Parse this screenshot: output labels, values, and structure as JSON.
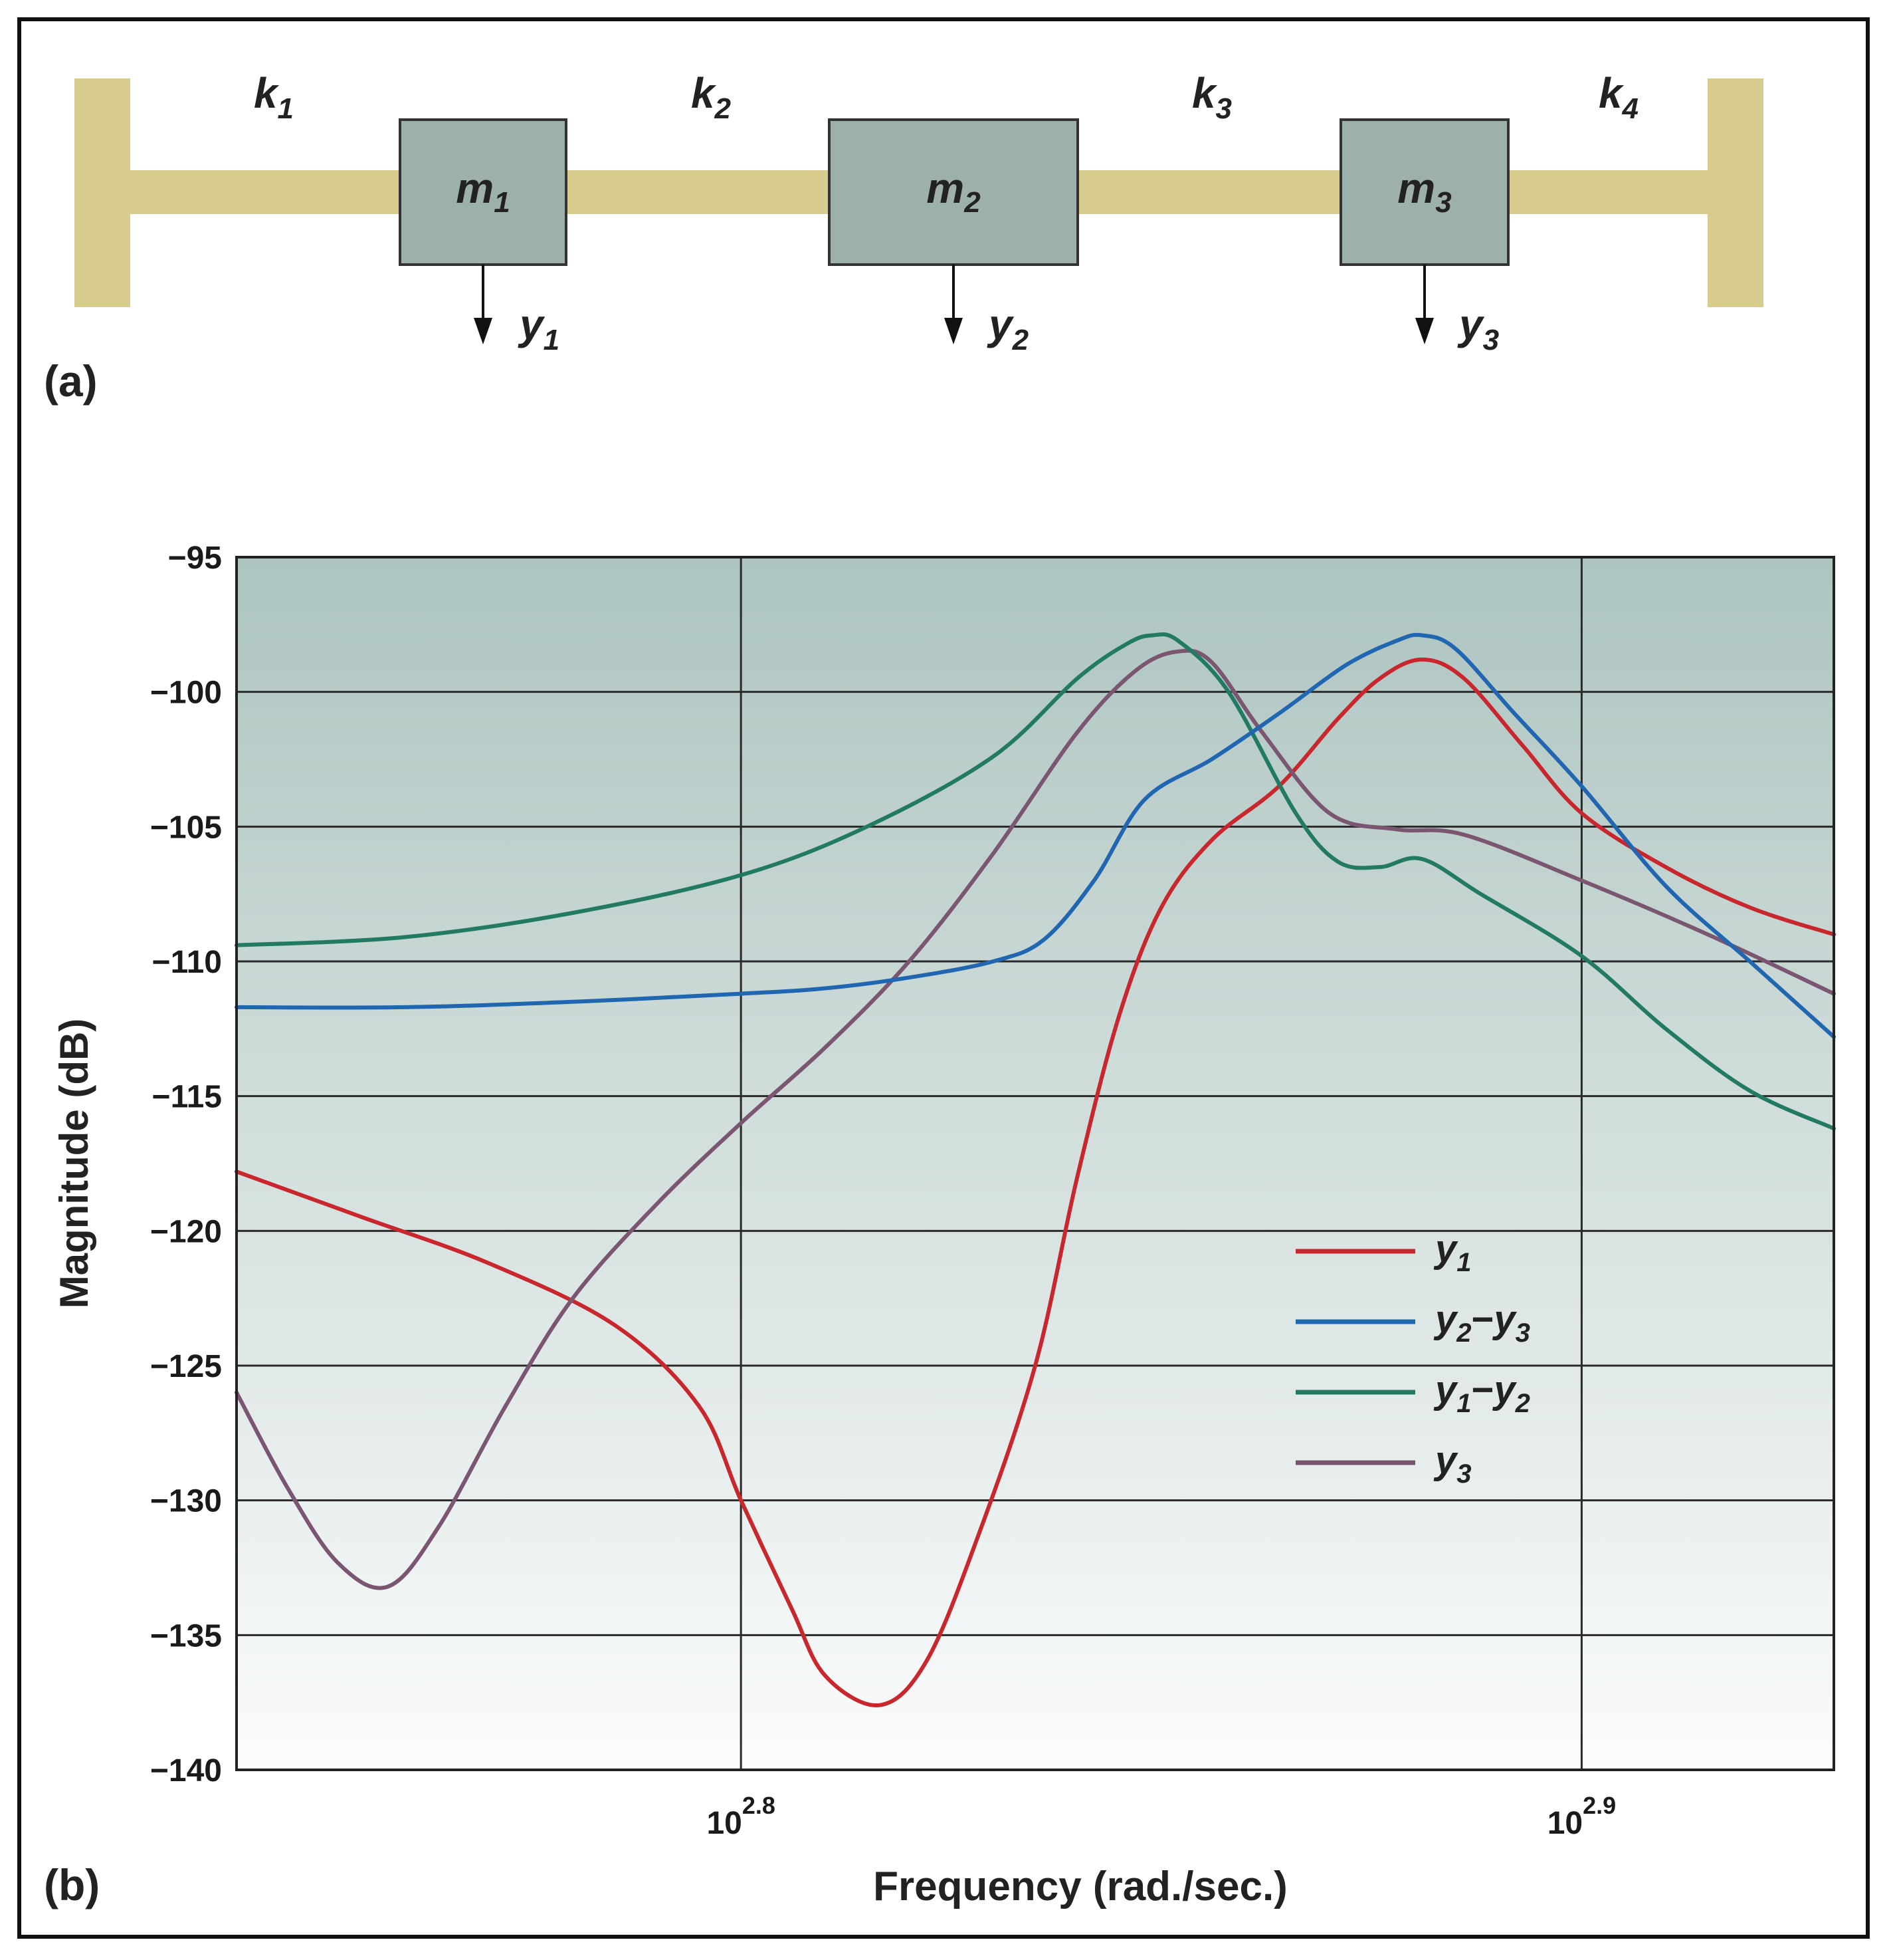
{
  "diagram": {
    "panel_label": "(a)",
    "springs": [
      "k1",
      "k2",
      "k3",
      "k4"
    ],
    "spring_labels": [
      {
        "base": "k",
        "sub": "1"
      },
      {
        "base": "k",
        "sub": "2"
      },
      {
        "base": "k",
        "sub": "3"
      },
      {
        "base": "k",
        "sub": "4"
      }
    ],
    "masses": [
      {
        "base": "m",
        "sub": "1"
      },
      {
        "base": "m",
        "sub": "2"
      },
      {
        "base": "m",
        "sub": "3"
      }
    ],
    "displacements": [
      {
        "base": "y",
        "sub": "1"
      },
      {
        "base": "y",
        "sub": "2"
      },
      {
        "base": "y",
        "sub": "3"
      }
    ],
    "colors": {
      "wall_and_spring": "#d8cb8e",
      "mass": "#9db0ac",
      "mass_border": "#333333"
    }
  },
  "chart_data": {
    "panel_label": "(b)",
    "type": "line",
    "xlabel": "Frequency (rad./sec.)",
    "ylabel": "Magnitude (dB)",
    "x_scale": "log",
    "xlim": [
      2.74,
      2.93
    ],
    "ylim": [
      -140,
      -95
    ],
    "xticks": [
      {
        "value": 2.8,
        "base": "10",
        "exp": "2.8"
      },
      {
        "value": 2.9,
        "base": "10",
        "exp": "2.9"
      }
    ],
    "yticks": [
      -95,
      -100,
      -105,
      -110,
      -115,
      -120,
      -125,
      -130,
      -135,
      -140
    ],
    "ytick_labels": [
      "−95",
      "−100",
      "−105",
      "−110",
      "−115",
      "−120",
      "−125",
      "−130",
      "−135",
      "−140"
    ],
    "grid": true,
    "legend_position": "right-center",
    "x_note": "x values are log10 of frequency in rad./sec.",
    "series": [
      {
        "name": "y1",
        "legend": {
          "parts": [
            {
              "base": "y",
              "sub": "1"
            }
          ]
        },
        "color": "#c8272d",
        "points": [
          [
            2.74,
            -117.8
          ],
          [
            2.755,
            -119.5
          ],
          [
            2.77,
            -121.2
          ],
          [
            2.785,
            -123.5
          ],
          [
            2.795,
            -126.5
          ],
          [
            2.8,
            -130.0
          ],
          [
            2.806,
            -134.0
          ],
          [
            2.81,
            -136.5
          ],
          [
            2.8165,
            -137.6
          ],
          [
            2.822,
            -136.0
          ],
          [
            2.828,
            -131.5
          ],
          [
            2.835,
            -125.0
          ],
          [
            2.84,
            -118.0
          ],
          [
            2.845,
            -112.0
          ],
          [
            2.85,
            -108.0
          ],
          [
            2.856,
            -105.5
          ],
          [
            2.864,
            -103.5
          ],
          [
            2.871,
            -101.0
          ],
          [
            2.876,
            -99.5
          ],
          [
            2.881,
            -98.8
          ],
          [
            2.886,
            -99.5
          ],
          [
            2.893,
            -102.0
          ],
          [
            2.9,
            -104.5
          ],
          [
            2.91,
            -106.5
          ],
          [
            2.92,
            -108.0
          ],
          [
            2.93,
            -109.0
          ]
        ]
      },
      {
        "name": "y2 − y3",
        "legend": {
          "parts": [
            {
              "base": "y",
              "sub": "2"
            },
            {
              "base": "y",
              "sub": "3"
            }
          ]
        },
        "color": "#2066b0",
        "points": [
          [
            2.74,
            -111.7
          ],
          [
            2.76,
            -111.7
          ],
          [
            2.78,
            -111.5
          ],
          [
            2.8,
            -111.2
          ],
          [
            2.81,
            -111.0
          ],
          [
            2.82,
            -110.6
          ],
          [
            2.83,
            -110.0
          ],
          [
            2.836,
            -109.2
          ],
          [
            2.842,
            -107.0
          ],
          [
            2.848,
            -104.0
          ],
          [
            2.856,
            -102.5
          ],
          [
            2.864,
            -100.8
          ],
          [
            2.872,
            -99.0
          ],
          [
            2.878,
            -98.1
          ],
          [
            2.881,
            -97.9
          ],
          [
            2.885,
            -98.4
          ],
          [
            2.892,
            -100.8
          ],
          [
            2.9,
            -103.5
          ],
          [
            2.91,
            -107.2
          ],
          [
            2.92,
            -110.0
          ],
          [
            2.93,
            -112.8
          ]
        ]
      },
      {
        "name": "y1 − y2",
        "legend": {
          "parts": [
            {
              "base": "y",
              "sub": "1"
            },
            {
              "base": "y",
              "sub": "2"
            }
          ]
        },
        "color": "#227a62",
        "points": [
          [
            2.74,
            -109.4
          ],
          [
            2.76,
            -109.1
          ],
          [
            2.78,
            -108.2
          ],
          [
            2.8,
            -106.8
          ],
          [
            2.815,
            -105.0
          ],
          [
            2.83,
            -102.4
          ],
          [
            2.84,
            -99.5
          ],
          [
            2.846,
            -98.2
          ],
          [
            2.849,
            -97.9
          ],
          [
            2.852,
            -98.1
          ],
          [
            2.858,
            -100.0
          ],
          [
            2.866,
            -104.5
          ],
          [
            2.871,
            -106.3
          ],
          [
            2.876,
            -106.5
          ],
          [
            2.881,
            -106.2
          ],
          [
            2.888,
            -107.5
          ],
          [
            2.9,
            -109.8
          ],
          [
            2.91,
            -112.5
          ],
          [
            2.92,
            -114.8
          ],
          [
            2.93,
            -116.2
          ]
        ]
      },
      {
        "name": "y3",
        "legend": {
          "parts": [
            {
              "base": "y",
              "sub": "3"
            }
          ]
        },
        "color": "#7a5670",
        "points": [
          [
            2.74,
            -126.0
          ],
          [
            2.746,
            -129.5
          ],
          [
            2.752,
            -132.3
          ],
          [
            2.758,
            -133.2
          ],
          [
            2.764,
            -131.0
          ],
          [
            2.772,
            -126.5
          ],
          [
            2.78,
            -122.5
          ],
          [
            2.79,
            -119.0
          ],
          [
            2.8,
            -116.0
          ],
          [
            2.81,
            -113.2
          ],
          [
            2.82,
            -110.0
          ],
          [
            2.83,
            -106.0
          ],
          [
            2.84,
            -101.5
          ],
          [
            2.847,
            -99.2
          ],
          [
            2.852,
            -98.5
          ],
          [
            2.856,
            -98.9
          ],
          [
            2.862,
            -101.5
          ],
          [
            2.87,
            -104.5
          ],
          [
            2.878,
            -105.1
          ],
          [
            2.886,
            -105.3
          ],
          [
            2.9,
            -107.0
          ],
          [
            2.915,
            -109.0
          ],
          [
            2.93,
            -111.2
          ]
        ]
      }
    ]
  }
}
